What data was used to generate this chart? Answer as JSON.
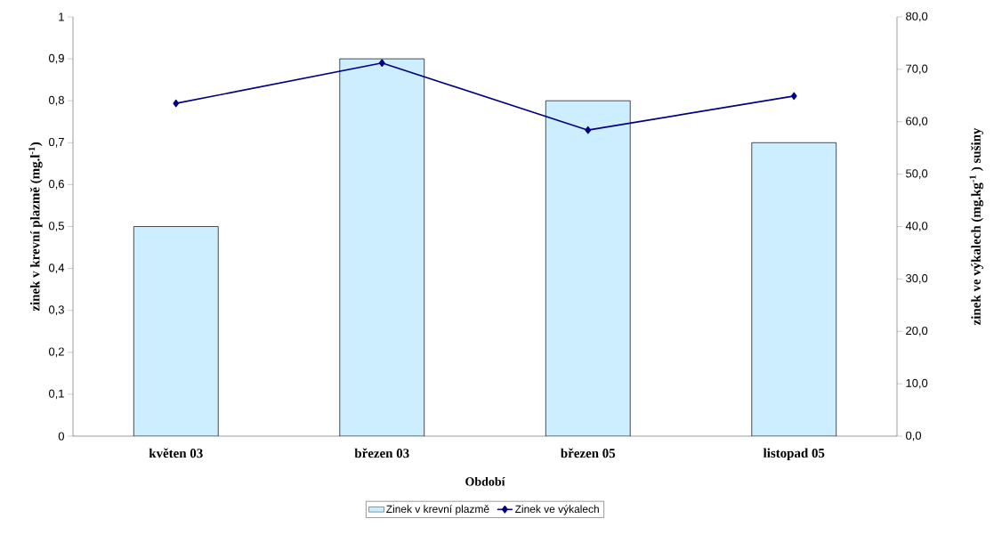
{
  "chart_data": {
    "type": "bar",
    "categories": [
      "květen 03",
      "březen 03",
      "březen 05",
      "listopad 05"
    ],
    "xlabel": "Období",
    "ylabel": "zinek v krevní plazmě (mg.l$^{-1}$)",
    "y2label": "zinek ve výkalech (mg.kg$^{-1}$ ) sušiny",
    "ylim": [
      0,
      1
    ],
    "yticks": [
      0,
      {
        "value": 0.1,
        "label": "0,1"
      },
      {
        "value": 0.2,
        "label": "0,2"
      },
      {
        "value": 0.3,
        "label": "0,3"
      },
      {
        "value": 0.4,
        "label": "0,4"
      },
      {
        "value": 0.5,
        "label": "0,5"
      },
      {
        "value": 0.6,
        "label": "0,6"
      },
      {
        "value": 0.7,
        "label": "0,7"
      },
      {
        "value": 0.8,
        "label": "0,8"
      },
      {
        "value": 0.9,
        "label": "0,9"
      },
      1
    ],
    "y2lim": [
      0,
      80
    ],
    "y2ticks": [
      {
        "value": 0,
        "label": "0,0"
      },
      {
        "value": 10,
        "label": "10,0"
      },
      {
        "value": 20,
        "label": "20,0"
      },
      {
        "value": 30,
        "label": "30,0"
      },
      {
        "value": 40,
        "label": "40,0"
      },
      {
        "value": 50,
        "label": "50,0"
      },
      {
        "value": 60,
        "label": "60,0"
      },
      {
        "value": 70,
        "label": "70,0"
      },
      {
        "value": 80,
        "label": "80,0"
      }
    ],
    "series": [
      {
        "name": "Zinek v krevní plazmě",
        "color": "#cceeff",
        "values": [
          0.5,
          0.9,
          0.8,
          0.7
        ]
      },
      {
        "name": "Zinek ve výkalech",
        "type": "line",
        "axis": "y2",
        "color": "#000080",
        "values": [
          63.5,
          71.2,
          58.4,
          64.9
        ]
      }
    ],
    "marker": "diamond",
    "legend": "bottom",
    "grid": false
  }
}
